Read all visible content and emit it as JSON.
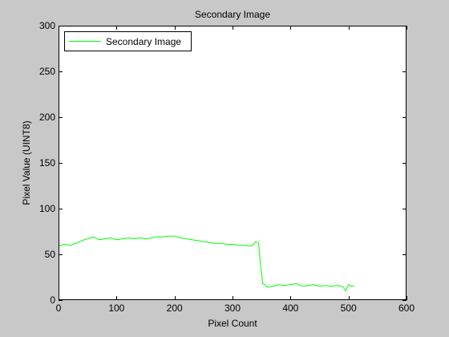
{
  "chart_data": {
    "type": "line",
    "title": "Secondary Image",
    "xlabel": "Pixel Count",
    "ylabel": "Pixel Value (UINT8)",
    "xlim": [
      0,
      600
    ],
    "ylim": [
      0,
      300
    ],
    "xticks": [
      0,
      100,
      200,
      300,
      400,
      500,
      600
    ],
    "yticks": [
      0,
      50,
      100,
      150,
      200,
      250,
      300
    ],
    "grid": false,
    "legend_position": "top-left",
    "background": "#c8c8c8",
    "axes_color": "#ffffff",
    "series": [
      {
        "name": "Secondary Image",
        "color": "#00ff00",
        "x": [
          0,
          10,
          20,
          30,
          40,
          50,
          60,
          70,
          80,
          90,
          100,
          110,
          120,
          130,
          140,
          150,
          160,
          170,
          180,
          190,
          200,
          210,
          220,
          230,
          240,
          250,
          260,
          270,
          280,
          290,
          300,
          310,
          320,
          330,
          335,
          340,
          345,
          348,
          350,
          352,
          355,
          358,
          360,
          370,
          380,
          390,
          400,
          410,
          420,
          430,
          440,
          450,
          460,
          470,
          480,
          490,
          495,
          500,
          505,
          510
        ],
        "y": [
          59,
          61,
          60,
          62,
          65,
          67,
          69,
          66,
          67,
          68,
          66,
          67,
          68,
          67,
          68,
          67,
          68,
          69,
          69,
          70,
          70,
          68,
          67,
          66,
          65,
          64,
          63,
          62,
          62,
          61,
          61,
          60,
          60,
          59,
          60,
          64,
          62,
          40,
          30,
          18,
          17,
          16,
          14,
          15,
          17,
          16,
          17,
          18,
          15,
          16,
          17,
          15,
          16,
          15,
          16,
          15,
          10,
          17,
          15,
          16
        ]
      }
    ]
  }
}
